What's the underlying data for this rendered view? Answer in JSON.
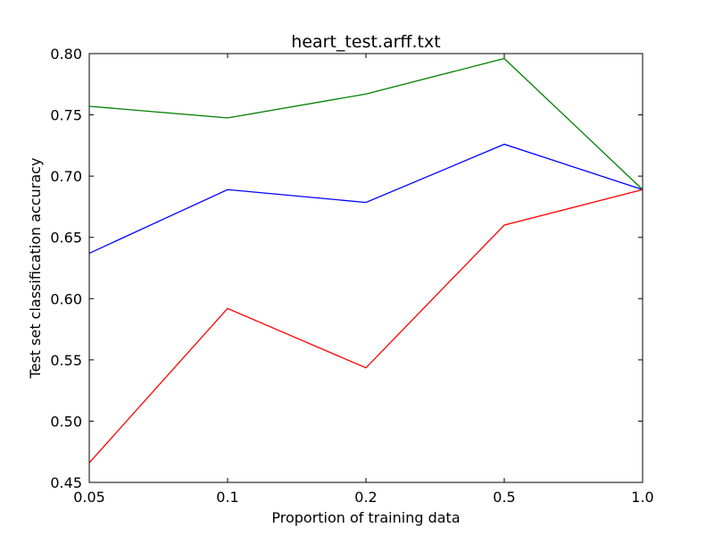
{
  "chart_data": {
    "type": "line",
    "title": "heart_test.arff.txt",
    "xlabel": "Proportion of training data",
    "ylabel": "Test set classification accuracy",
    "categories": [
      "0.05",
      "0.1",
      "0.2",
      "0.5",
      "1.0"
    ],
    "ylim": [
      0.45,
      0.8
    ],
    "yticks": [
      "0.45",
      "0.50",
      "0.55",
      "0.60",
      "0.65",
      "0.70",
      "0.75",
      "0.80"
    ],
    "grid": false,
    "series": [
      {
        "color": "#0000ff",
        "values": [
          0.637,
          0.689,
          0.6785,
          0.726,
          0.689
        ]
      },
      {
        "color": "#008000",
        "values": [
          0.757,
          0.7475,
          0.767,
          0.796,
          0.689
        ]
      },
      {
        "color": "#ff0000",
        "values": [
          0.466,
          0.592,
          0.5435,
          0.66,
          0.689
        ]
      }
    ]
  }
}
